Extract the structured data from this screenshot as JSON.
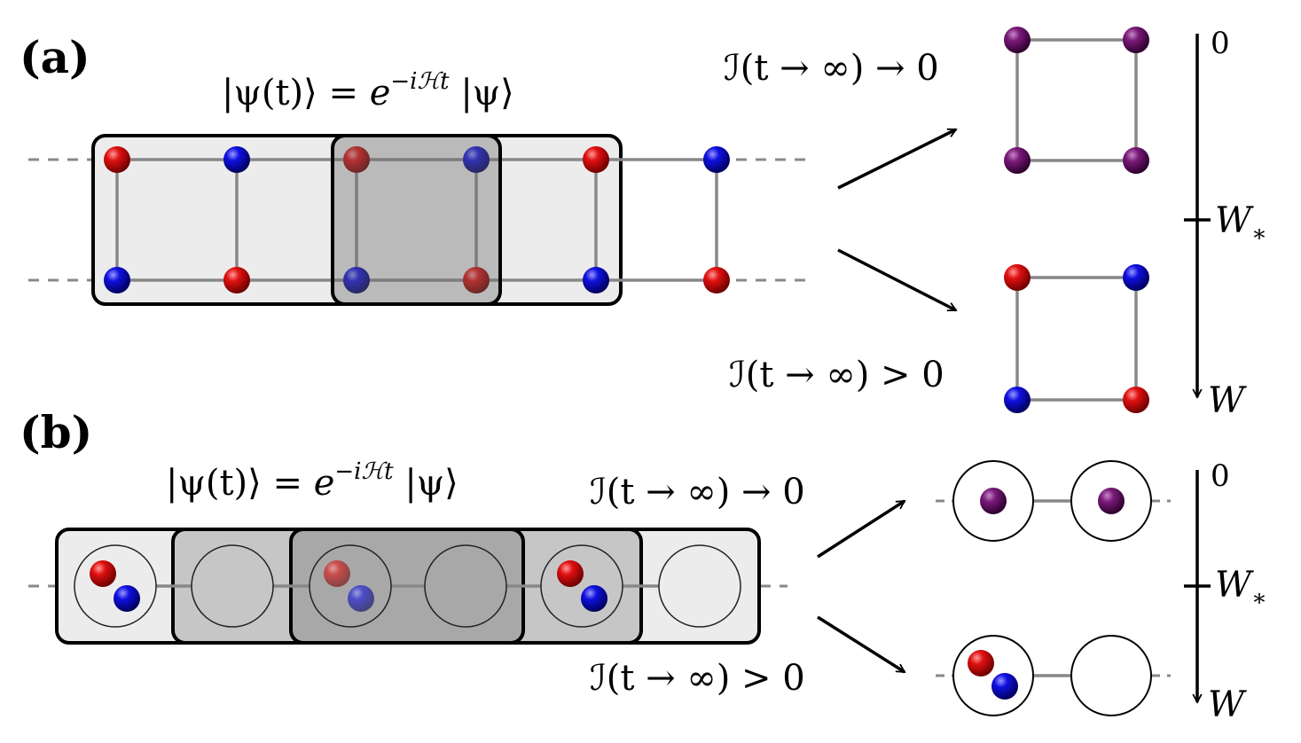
{
  "panels": {
    "a": {
      "label": "(a)",
      "evolution": "|ψ(t)⟩ = e^{−iℋt} |ψ⟩",
      "evo_parts": [
        "|ψ(t)⟩ = ",
        "e",
        "−iℋt",
        " |ψ⟩"
      ]
    },
    "b": {
      "label": "(b)",
      "evolution": "|ψ(t)⟩ = e^{−iℋt} |ψ⟩",
      "evo_parts": [
        "|ψ(t)⟩ = ",
        "e",
        "−iℋt",
        " |ψ⟩"
      ]
    }
  },
  "outcomes": {
    "vanishing": "ℐ(t → ∞) → 0",
    "finite": "ℐ(t → ∞) > 0"
  },
  "axis": {
    "top": "0",
    "middle": "W",
    "middle_sub": "∗",
    "bottom": "W"
  },
  "colors": {
    "red": "#d10000",
    "blue": "#0000cc",
    "purple": "#6a0a6a",
    "box_light": "#ececec",
    "box_mid": "#c6c6c6",
    "box_dark": "#a8a8a8",
    "bond": "#888888"
  }
}
